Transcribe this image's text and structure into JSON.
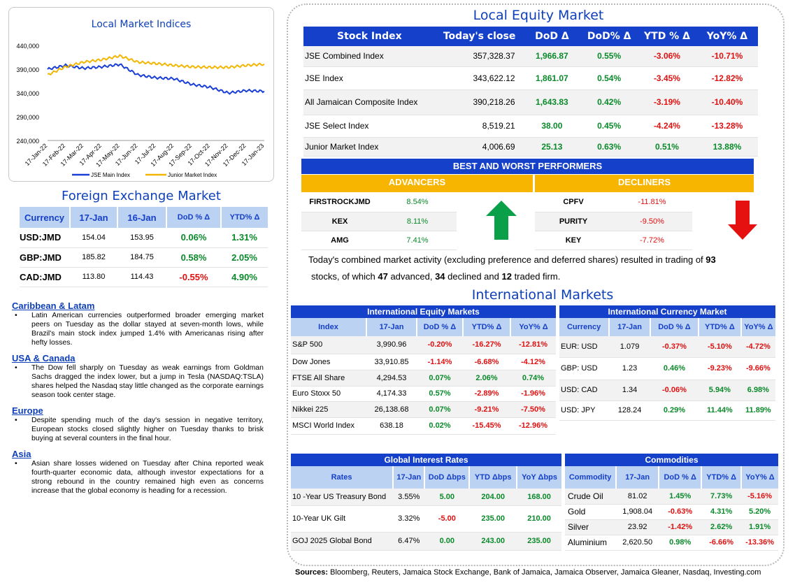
{
  "chart": {
    "title": "Local Market Indices",
    "y_ticks": [
      "440,000",
      "390,000",
      "340,000",
      "290,000",
      "240,000"
    ],
    "x_ticks": [
      "17-Jan-22",
      "17-Feb-22",
      "17-Mar-22",
      "17-Apr-22",
      "17-May-22",
      "17-Jun-22",
      "17-Jul-22",
      "17-Aug-22",
      "17-Sep-22",
      "17-Oct-22",
      "17-Nov-22",
      "17-Dec-22",
      "17-Jan-23"
    ],
    "legend": [
      "JSE Main Index",
      "Junior Market Index"
    ],
    "colors": {
      "main": "#1a3fd6",
      "junior": "#f2b705"
    }
  },
  "chart_data": {
    "type": "line",
    "x": [
      "17-Jan-22",
      "17-Feb-22",
      "17-Mar-22",
      "17-Apr-22",
      "17-May-22",
      "17-Jun-22",
      "17-Jul-22",
      "17-Aug-22",
      "17-Sep-22",
      "17-Oct-22",
      "17-Nov-22",
      "17-Dec-22",
      "17-Jan-23"
    ],
    "ylim": [
      240000,
      440000
    ],
    "series": [
      {
        "name": "JSE Main Index",
        "values": [
          390000,
          398000,
          392000,
          395000,
          400000,
          378000,
          372000,
          370000,
          358000,
          352000,
          340000,
          345000,
          343600
        ]
      },
      {
        "name": "Junior Market Index",
        "values": [
          378000,
          395000,
          405000,
          410000,
          418000,
          405000,
          402000,
          398000,
          395000,
          394000,
          394000,
          398000,
          400700
        ]
      }
    ]
  },
  "fx": {
    "title": "Foreign Exchange Market",
    "headers": [
      "Currency",
      "17-Jan",
      "16-Jan",
      "DoD % Δ",
      "YTD% Δ"
    ],
    "rows": [
      [
        "USD:JMD",
        "154.04",
        "153.95",
        "0.06%",
        "1.31%"
      ],
      [
        "GBP:JMD",
        "185.82",
        "184.75",
        "0.58%",
        "2.05%"
      ],
      [
        "CAD:JMD",
        "113.80",
        "114.43",
        "-0.55%",
        "4.90%"
      ]
    ]
  },
  "news": [
    {
      "heading": "Caribbean & Latam",
      "text": "Latin American currencies outperformed broader emerging market peers on Tuesday as the dollar stayed at seven-month lows, while Brazil's main stock index jumped 1.4% with Americanas rising after hefty losses."
    },
    {
      "heading": "USA & Canada",
      "text": "The Dow fell sharply on Tuesday as weak earnings from Goldman Sachs dragged the index lower, but a jump in Tesla (NASDAQ:TSLA) shares helped the Nasdaq stay little changed as the corporate earnings season took center stage."
    },
    {
      "heading": "Europe",
      "text": "Despite spending much of the day's session in negative territory, European stocks closed slightly higher on Tuesday thanks to brisk buying at several counters in the final hour."
    },
    {
      "heading": "Asia",
      "text": "Asian share losses widened on Tuesday after China reported weak fourth-quarter economic data, although investor expectations for a strong rebound in the country remained high even as concerns increase that the global economy is heading for a recession."
    }
  ],
  "local_equity": {
    "title": "Local Equity Market",
    "headers": [
      "Stock Index",
      "Today's close",
      "DoD  Δ",
      "DoD% Δ",
      "YTD % Δ",
      "YoY% Δ"
    ],
    "rows": [
      [
        "JSE Combined Index",
        "357,328.37",
        "1,966.87",
        "0.55%",
        "-3.06%",
        "-10.71%"
      ],
      [
        "JSE Index",
        "343,622.12",
        "1,861.07",
        "0.54%",
        "-3.45%",
        "-12.82%"
      ],
      [
        "All Jamaican Composite Index",
        "390,218.26",
        "1,643.83",
        "0.42%",
        "-3.19%",
        "-10.40%"
      ],
      [
        "JSE Select Index",
        "8,519.21",
        "38.00",
        "0.45%",
        "-4.24%",
        "-13.28%"
      ],
      [
        "Junior Market Index",
        "4,006.69",
        "25.13",
        "0.63%",
        "0.51%",
        "13.88%"
      ]
    ]
  },
  "performers": {
    "title": "BEST AND WORST PERFORMERS",
    "advancers_label": "ADVANCERS",
    "decliners_label": "DECLINERS",
    "advancers": [
      [
        "FIRSTROCKJMD",
        "8.54%"
      ],
      [
        "KEX",
        "8.11%"
      ],
      [
        "AMG",
        "7.41%"
      ]
    ],
    "decliners": [
      [
        "CPFV",
        "-11.81%"
      ],
      [
        "PURITY",
        "-9.50%"
      ],
      [
        "KEY",
        "-7.72%"
      ]
    ]
  },
  "summary": {
    "line1_pre": "Today's combined market activity (excluding preference and deferred shares) resulted in trading of ",
    "total": "93",
    "line2_pre": "stocks, of which ",
    "advanced": "47",
    "advanced_text": " advanced, ",
    "declined": "34",
    "declined_text": " declined and ",
    "firm": "12",
    "firm_text": " traded firm."
  },
  "intl": {
    "title": "International Markets",
    "equity": {
      "title": "International Equity Markets",
      "headers": [
        "Index",
        "17-Jan",
        "DoD % Δ",
        "YTD% Δ",
        "YoY% Δ"
      ],
      "rows": [
        [
          "S&P 500",
          "3,990.96",
          "-0.20%",
          "-16.27%",
          "-12.81%"
        ],
        [
          "Dow Jones",
          "33,910.85",
          "-1.14%",
          "-6.68%",
          "-4.12%"
        ],
        [
          "FTSE All Share",
          "4,294.53",
          "0.07%",
          "2.06%",
          "0.74%"
        ],
        [
          "Euro Stoxx 50",
          "4,174.33",
          "0.57%",
          "-2.89%",
          "-1.96%"
        ],
        [
          "Nikkei 225",
          "26,138.68",
          "0.07%",
          "-9.21%",
          "-7.50%"
        ],
        [
          "MSCI World Index",
          "638.18",
          "0.02%",
          "-15.45%",
          "-12.96%"
        ]
      ]
    },
    "currency": {
      "title": "International Currency Market",
      "headers": [
        "Currency",
        "17-Jan",
        "DoD % Δ",
        "YTD% Δ",
        "YoY% Δ"
      ],
      "rows": [
        [
          "EUR: USD",
          "1.079",
          "-0.37%",
          "-5.10%",
          "-4.72%"
        ],
        [
          "GBP: USD",
          "1.23",
          "0.46%",
          "-9.23%",
          "-9.66%"
        ],
        [
          "USD: CAD",
          "1.34",
          "-0.06%",
          "5.94%",
          "6.98%"
        ],
        [
          "USD: JPY",
          "128.24",
          "0.29%",
          "11.44%",
          "11.89%"
        ]
      ]
    },
    "rates": {
      "title": "Global Interest Rates",
      "headers": [
        "Rates",
        "17-Jan",
        "DoD Δbps",
        "YTD Δbps",
        "YoY Δbps"
      ],
      "rows": [
        [
          "10 -Year US Treasury Bond",
          "3.55%",
          "5.00",
          "204.00",
          "168.00"
        ],
        [
          "10-Year UK Gilt",
          "3.32%",
          "-5.00",
          "235.00",
          "210.00"
        ],
        [
          "GOJ 2025 Global Bond",
          "6.47%",
          "0.00",
          "243.00",
          "235.00"
        ]
      ]
    },
    "commodities": {
      "title": "Commodities",
      "headers": [
        "Commodity",
        "17-Jan",
        "DoD % Δ",
        "YTD% Δ",
        "YoY% Δ"
      ],
      "rows": [
        [
          "Crude Oil",
          "81.02",
          "1.45%",
          "7.73%",
          "-5.16%"
        ],
        [
          "Gold",
          "1,908.04",
          "-0.63%",
          "4.31%",
          "5.20%"
        ],
        [
          "Silver",
          "23.92",
          "-1.42%",
          "2.62%",
          "1.91%"
        ],
        [
          "Aluminium",
          "2,620.50",
          "0.98%",
          "-6.66%",
          "-13.36%"
        ]
      ]
    }
  },
  "sources": {
    "label": "Sources:",
    "text": " Bloomberg, Reuters, Jamaica Stock Exchange, Bank of Jamaica, Jamaica Observer, Jamaica Gleaner, Nasdaq, Investing.com"
  }
}
